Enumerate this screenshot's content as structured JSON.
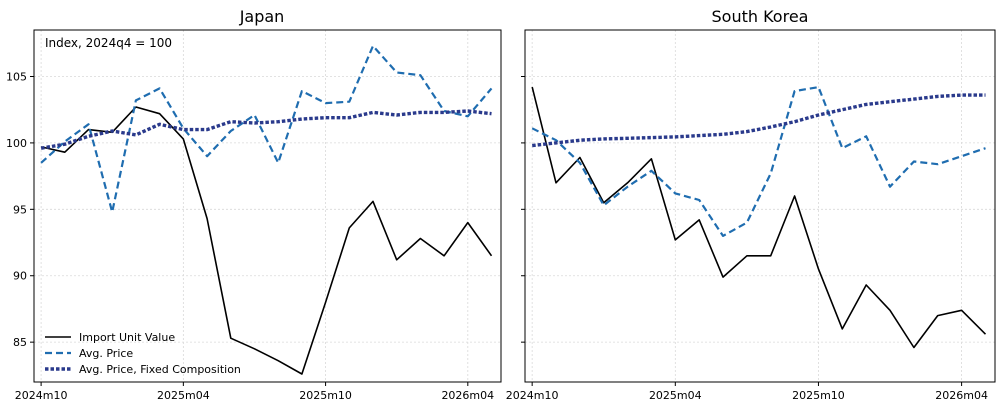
{
  "chart_data": [
    {
      "type": "line",
      "title": "Japan",
      "annotation": "Index, 2024q4 = 100",
      "xlabel": "",
      "ylabel": "",
      "x_tick_labels": [
        "2024m10",
        "2025m04",
        "2025m10",
        "2026m04"
      ],
      "x_tick_positions": [
        0,
        6,
        12,
        18
      ],
      "y_ticks": [
        85,
        90,
        95,
        100,
        105
      ],
      "xlim": [
        -0.3,
        19.4
      ],
      "ylim": [
        82,
        108.5
      ],
      "grid": true,
      "legend": {
        "placement": "lower-left"
      },
      "series": [
        {
          "name": "Import Unit Value",
          "color": "#000000",
          "style": "solid",
          "x": [
            0,
            1,
            2,
            3,
            4,
            5,
            6,
            7,
            8,
            9,
            10,
            11,
            12,
            13,
            14,
            15,
            16,
            17,
            18,
            19
          ],
          "values": [
            99.7,
            99.3,
            101.0,
            100.8,
            102.7,
            102.2,
            100.3,
            94.3,
            85.3,
            84.5,
            83.6,
            82.6,
            88.0,
            93.6,
            95.6,
            91.2,
            92.8,
            91.5,
            94.0,
            91.5
          ]
        },
        {
          "name": "Avg. Price",
          "color": "#1f6db0",
          "style": "dashed",
          "x": [
            0,
            1,
            2,
            3,
            4,
            5,
            6,
            7,
            8,
            9,
            10,
            11,
            12,
            13,
            14,
            15,
            16,
            17,
            18,
            19
          ],
          "values": [
            98.5,
            100.1,
            101.4,
            94.8,
            103.2,
            104.1,
            101.1,
            99.0,
            100.9,
            102.1,
            98.5,
            103.9,
            103.0,
            103.1,
            107.3,
            105.3,
            105.1,
            102.4,
            102.0,
            104.1
          ]
        },
        {
          "name": "Avg. Price, Fixed Composition",
          "color": "#2a3a8c",
          "style": "dotted",
          "x": [
            0,
            1,
            2,
            3,
            4,
            5,
            6,
            7,
            8,
            9,
            10,
            11,
            12,
            13,
            14,
            15,
            16,
            17,
            18,
            19
          ],
          "values": [
            99.6,
            99.9,
            100.5,
            100.9,
            100.6,
            101.4,
            101.0,
            101.0,
            101.6,
            101.5,
            101.6,
            101.8,
            101.9,
            101.9,
            102.3,
            102.1,
            102.3,
            102.3,
            102.4,
            102.2
          ]
        }
      ]
    },
    {
      "type": "line",
      "title": "South Korea",
      "annotation": "",
      "xlabel": "",
      "ylabel": "",
      "x_tick_labels": [
        "2024m10",
        "2025m04",
        "2025m10",
        "2026m04"
      ],
      "x_tick_positions": [
        0,
        6,
        12,
        18
      ],
      "y_ticks": [
        85,
        90,
        95,
        100,
        105
      ],
      "xlim": [
        -0.3,
        19.4
      ],
      "ylim": [
        82,
        108.5
      ],
      "grid": true,
      "legend": null,
      "series": [
        {
          "name": "Import Unit Value",
          "color": "#000000",
          "style": "solid",
          "x": [
            0,
            1,
            2,
            3,
            4,
            5,
            6,
            7,
            8,
            9,
            10,
            11,
            12,
            13,
            14,
            15,
            16,
            17,
            18,
            19
          ],
          "values": [
            104.2,
            97.0,
            98.9,
            95.5,
            97.0,
            98.8,
            92.7,
            94.2,
            89.9,
            91.5,
            91.5,
            96.0,
            90.5,
            86.0,
            89.3,
            87.4,
            84.6,
            87.0,
            87.4,
            85.6
          ]
        },
        {
          "name": "Avg. Price",
          "color": "#1f6db0",
          "style": "dashed",
          "x": [
            0,
            1,
            2,
            3,
            4,
            5,
            6,
            7,
            8,
            9,
            10,
            11,
            12,
            13,
            14,
            15,
            16,
            17,
            18,
            19
          ],
          "values": [
            101.1,
            100.2,
            98.5,
            95.3,
            96.7,
            97.9,
            96.2,
            95.7,
            93.0,
            94.0,
            97.7,
            103.9,
            104.2,
            99.6,
            100.5,
            96.7,
            98.6,
            98.4,
            99.0,
            99.6
          ]
        },
        {
          "name": "Avg. Price, Fixed Composition",
          "color": "#2a3a8c",
          "style": "dotted",
          "x": [
            0,
            1,
            2,
            3,
            4,
            5,
            6,
            7,
            8,
            9,
            10,
            11,
            12,
            13,
            14,
            15,
            16,
            17,
            18,
            19
          ],
          "values": [
            99.8,
            100.0,
            100.2,
            100.3,
            100.35,
            100.4,
            100.45,
            100.55,
            100.65,
            100.85,
            101.2,
            101.6,
            102.1,
            102.5,
            102.9,
            103.1,
            103.3,
            103.5,
            103.6,
            103.6
          ]
        }
      ]
    }
  ]
}
